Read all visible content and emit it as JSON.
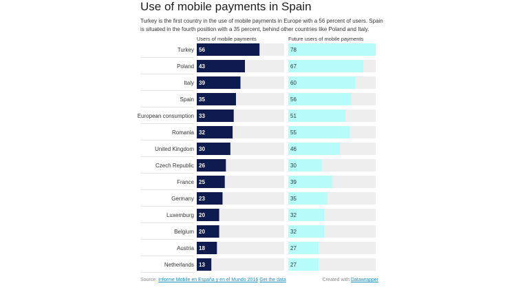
{
  "title": "Use of mobile payments in Spain",
  "subtitle": "Turkey is the first country in the use of mobile payments in Europe with a 56 percent of users. Spain is situated in the fourth position with a 35 percent, behind other countries like Poland and Italy.",
  "colors": {
    "series1": "#0d1b4f",
    "series2": "#b5fcfb",
    "track": "#eeeeee",
    "link": "#1a8bb8"
  },
  "chart_data": {
    "type": "bar",
    "orientation": "horizontal",
    "title": "Use of mobile payments in Spain",
    "categories": [
      "Turkey",
      "Poland",
      "Italy",
      "Spain",
      "European consumption",
      "Romania",
      "United Kingdom",
      "Czech Republic",
      "France",
      "Germany",
      "Luxemburg",
      "Belgium",
      "Austria",
      "Netherlands"
    ],
    "series": [
      {
        "name": "Users of mobile payments",
        "values": [
          56,
          43,
          39,
          35,
          33,
          32,
          30,
          26,
          25,
          23,
          20,
          20,
          18,
          13
        ]
      },
      {
        "name": "Future users of mobile payments",
        "values": [
          78,
          67,
          60,
          56,
          51,
          55,
          46,
          30,
          39,
          35,
          32,
          32,
          27,
          27
        ]
      }
    ],
    "xlim": [
      0,
      78
    ],
    "legend": "column headers"
  },
  "footer": {
    "source_label": "Source:",
    "source_link": "Informe Mobile en España y en el Mundo 2016",
    "get_data": "Get the data",
    "created_with": "Created with",
    "tool": "Datawrapper"
  }
}
